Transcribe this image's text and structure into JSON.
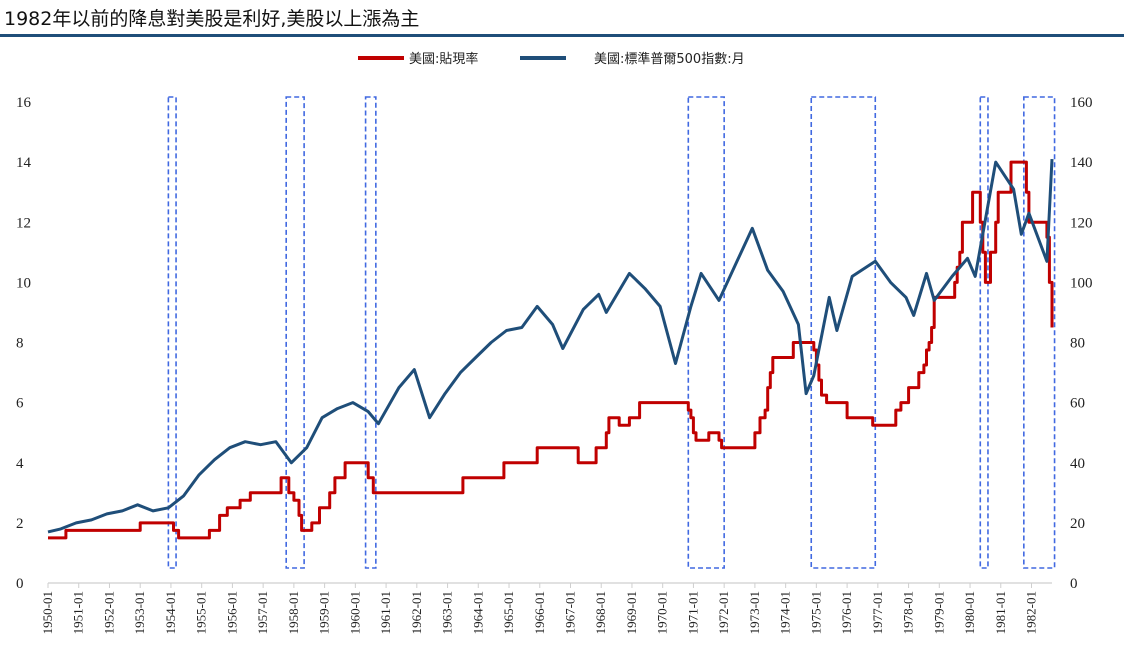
{
  "title": "1982年以前的降息對美股是利好,美股以上漲為主",
  "chart_data": {
    "type": "line",
    "title": "1982年以前的降息對美股是利好,美股以上漲為主",
    "xlabel": "",
    "ylabel_left": "",
    "ylabel_right": "",
    "x_range": [
      "1950-01",
      "1982-09"
    ],
    "y_left_range": [
      0,
      16
    ],
    "y_right_range": [
      0,
      160
    ],
    "y_left_ticks": [
      "0",
      "2",
      "4",
      "6",
      "8",
      "10",
      "12",
      "14",
      "16"
    ],
    "y_right_ticks": [
      "0",
      "20",
      "40",
      "60",
      "80",
      "100",
      "120",
      "140",
      "160"
    ],
    "x_ticks": [
      "1950-01",
      "1951-01",
      "1952-01",
      "1953-01",
      "1954-01",
      "1955-01",
      "1956-01",
      "1957-01",
      "1958-01",
      "1959-01",
      "1960-01",
      "1961-01",
      "1962-01",
      "1963-01",
      "1964-01",
      "1965-01",
      "1966-01",
      "1967-01",
      "1968-01",
      "1969-01",
      "1970-01",
      "1971-01",
      "1972-01",
      "1973-01",
      "1974-01",
      "1975-01",
      "1976-01",
      "1977-01",
      "1978-01",
      "1979-01",
      "1980-01",
      "1981-01",
      "1982-01"
    ],
    "legend_position": "top-center",
    "grid": false,
    "series": [
      {
        "name": "美國:貼現率",
        "axis": "left",
        "color": "#c00000",
        "step": true,
        "points": [
          [
            "1950-01",
            1.5
          ],
          [
            "1950-08",
            1.75
          ],
          [
            "1953-01",
            2.0
          ],
          [
            "1954-02",
            1.75
          ],
          [
            "1954-04",
            1.5
          ],
          [
            "1955-04",
            1.75
          ],
          [
            "1955-08",
            2.25
          ],
          [
            "1955-11",
            2.5
          ],
          [
            "1956-04",
            2.75
          ],
          [
            "1956-08",
            3.0
          ],
          [
            "1957-08",
            3.5
          ],
          [
            "1957-11",
            3.0
          ],
          [
            "1958-01",
            2.75
          ],
          [
            "1958-03",
            2.25
          ],
          [
            "1958-04",
            1.75
          ],
          [
            "1958-08",
            2.0
          ],
          [
            "1958-09",
            2.0
          ],
          [
            "1958-11",
            2.5
          ],
          [
            "1959-03",
            3.0
          ],
          [
            "1959-05",
            3.5
          ],
          [
            "1959-09",
            4.0
          ],
          [
            "1960-06",
            3.5
          ],
          [
            "1960-08",
            3.0
          ],
          [
            "1963-07",
            3.5
          ],
          [
            "1964-11",
            4.0
          ],
          [
            "1965-12",
            4.5
          ],
          [
            "1967-04",
            4.0
          ],
          [
            "1967-11",
            4.5
          ],
          [
            "1968-03",
            5.0
          ],
          [
            "1968-04",
            5.5
          ],
          [
            "1968-08",
            5.25
          ],
          [
            "1968-12",
            5.5
          ],
          [
            "1969-04",
            6.0
          ],
          [
            "1970-11",
            5.75
          ],
          [
            "1970-12",
            5.5
          ],
          [
            "1971-01",
            5.0
          ],
          [
            "1971-02",
            4.75
          ],
          [
            "1971-07",
            5.0
          ],
          [
            "1971-11",
            4.75
          ],
          [
            "1971-12",
            4.5
          ],
          [
            "1973-01",
            5.0
          ],
          [
            "1973-03",
            5.5
          ],
          [
            "1973-05",
            5.75
          ],
          [
            "1973-06",
            6.5
          ],
          [
            "1973-07",
            7.0
          ],
          [
            "1973-08",
            7.5
          ],
          [
            "1974-04",
            8.0
          ],
          [
            "1974-12",
            7.75
          ],
          [
            "1975-01",
            7.25
          ],
          [
            "1975-02",
            6.75
          ],
          [
            "1975-03",
            6.25
          ],
          [
            "1975-05",
            6.0
          ],
          [
            "1976-01",
            5.5
          ],
          [
            "1976-11",
            5.25
          ],
          [
            "1977-08",
            5.75
          ],
          [
            "1977-10",
            6.0
          ],
          [
            "1978-01",
            6.5
          ],
          [
            "1978-05",
            7.0
          ],
          [
            "1978-07",
            7.25
          ],
          [
            "1978-08",
            7.75
          ],
          [
            "1978-09",
            8.0
          ],
          [
            "1978-10",
            8.5
          ],
          [
            "1978-11",
            9.5
          ],
          [
            "1979-07",
            10.0
          ],
          [
            "1979-08",
            10.5
          ],
          [
            "1979-09",
            11.0
          ],
          [
            "1979-10",
            12.0
          ],
          [
            "1980-02",
            13.0
          ],
          [
            "1980-05",
            12.0
          ],
          [
            "1980-06",
            11.0
          ],
          [
            "1980-07",
            10.0
          ],
          [
            "1980-09",
            11.0
          ],
          [
            "1980-11",
            12.0
          ],
          [
            "1980-12",
            13.0
          ],
          [
            "1981-05",
            14.0
          ],
          [
            "1981-11",
            13.0
          ],
          [
            "1981-12",
            12.0
          ],
          [
            "1982-07",
            11.5
          ],
          [
            "1982-08",
            10.0
          ],
          [
            "1982-09",
            8.5
          ]
        ]
      },
      {
        "name": "美國:標準普爾500指數:月",
        "axis": "right",
        "color": "#1f4e79",
        "step": false,
        "points": [
          [
            "1950-01",
            17
          ],
          [
            "1950-06",
            18
          ],
          [
            "1950-12",
            20
          ],
          [
            "1951-06",
            21
          ],
          [
            "1951-12",
            23
          ],
          [
            "1952-06",
            24
          ],
          [
            "1952-12",
            26
          ],
          [
            "1953-06",
            24
          ],
          [
            "1953-12",
            25
          ],
          [
            "1954-06",
            29
          ],
          [
            "1954-12",
            36
          ],
          [
            "1955-06",
            41
          ],
          [
            "1955-12",
            45
          ],
          [
            "1956-06",
            47
          ],
          [
            "1956-12",
            46
          ],
          [
            "1957-06",
            47
          ],
          [
            "1957-12",
            40
          ],
          [
            "1958-06",
            45
          ],
          [
            "1958-12",
            55
          ],
          [
            "1959-06",
            58
          ],
          [
            "1959-12",
            60
          ],
          [
            "1960-06",
            57
          ],
          [
            "1960-10",
            53
          ],
          [
            "1961-06",
            65
          ],
          [
            "1961-12",
            71
          ],
          [
            "1962-06",
            55
          ],
          [
            "1962-12",
            63
          ],
          [
            "1963-06",
            70
          ],
          [
            "1963-12",
            75
          ],
          [
            "1964-06",
            80
          ],
          [
            "1964-12",
            84
          ],
          [
            "1965-06",
            85
          ],
          [
            "1965-12",
            92
          ],
          [
            "1966-06",
            86
          ],
          [
            "1966-10",
            78
          ],
          [
            "1967-06",
            91
          ],
          [
            "1967-12",
            96
          ],
          [
            "1968-03",
            90
          ],
          [
            "1968-12",
            103
          ],
          [
            "1969-06",
            98
          ],
          [
            "1969-12",
            92
          ],
          [
            "1970-06",
            73
          ],
          [
            "1970-12",
            92
          ],
          [
            "1971-04",
            103
          ],
          [
            "1971-11",
            94
          ],
          [
            "1972-06",
            107
          ],
          [
            "1972-12",
            118
          ],
          [
            "1973-06",
            104
          ],
          [
            "1973-12",
            97
          ],
          [
            "1974-06",
            86
          ],
          [
            "1974-09",
            63
          ],
          [
            "1974-12",
            69
          ],
          [
            "1975-06",
            95
          ],
          [
            "1975-09",
            84
          ],
          [
            "1976-03",
            102
          ],
          [
            "1976-12",
            107
          ],
          [
            "1977-06",
            100
          ],
          [
            "1977-12",
            95
          ],
          [
            "1978-03",
            89
          ],
          [
            "1978-08",
            103
          ],
          [
            "1978-11",
            94
          ],
          [
            "1979-06",
            102
          ],
          [
            "1979-12",
            108
          ],
          [
            "1980-03",
            102
          ],
          [
            "1980-11",
            140
          ],
          [
            "1981-06",
            131
          ],
          [
            "1981-09",
            116
          ],
          [
            "1981-12",
            123
          ],
          [
            "1982-07",
            107
          ],
          [
            "1982-09",
            141
          ]
        ]
      }
    ],
    "highlight_windows": [
      [
        "1953-12",
        "1954-03"
      ],
      [
        "1957-10",
        "1958-05"
      ],
      [
        "1960-05",
        "1960-09"
      ],
      [
        "1970-11",
        "1972-01"
      ],
      [
        "1974-11",
        "1976-12"
      ],
      [
        "1980-05",
        "1980-08"
      ],
      [
        "1981-10",
        "1982-10"
      ]
    ]
  }
}
